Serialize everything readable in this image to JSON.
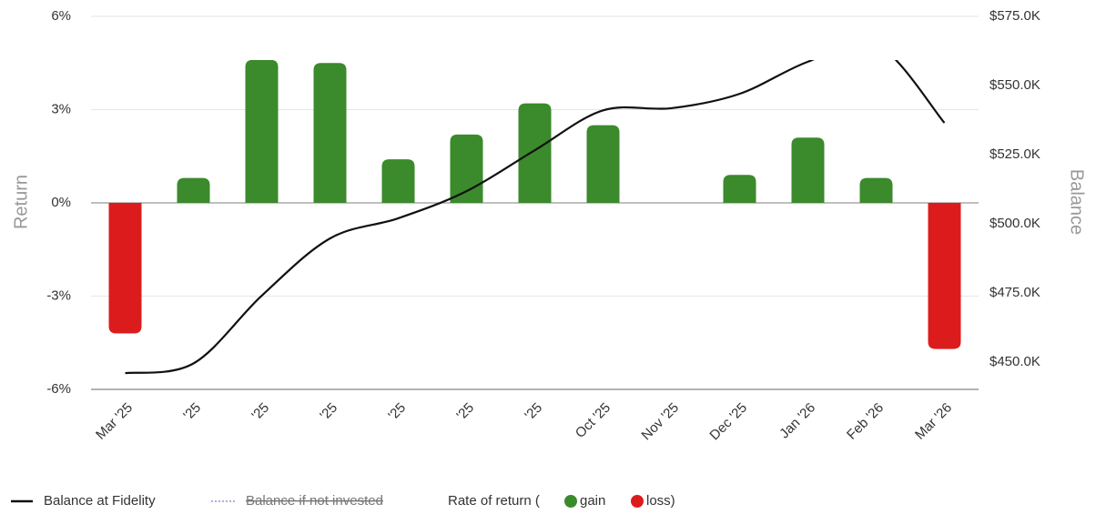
{
  "chart_data": {
    "type": "bar",
    "categories": [
      "Mar '25",
      "'25",
      "'25",
      "'25",
      "'25",
      "'25",
      "'25",
      "Oct '25",
      "Nov '25",
      "Dec '25",
      "Jan '26",
      "Feb '26",
      "Mar '26"
    ],
    "series": [
      {
        "name": "Rate of return",
        "type": "bar",
        "values": [
          -4.2,
          0.8,
          4.6,
          4.5,
          1.4,
          2.2,
          3.2,
          2.5,
          null,
          0.9,
          2.1,
          0.8,
          -4.7
        ],
        "gain_color": "#3b8a2c",
        "loss_color": "#dc1c1c"
      },
      {
        "name": "Balance at Fidelity",
        "type": "line",
        "axis": "y2",
        "color": "#111111",
        "values": [
          446000,
          449500,
          474000,
          494700,
          502000,
          511800,
          526600,
          541000,
          541800,
          547000,
          558600,
          565000,
          536500
        ]
      }
    ],
    "ylabel": "Return",
    "y2label": "Balance",
    "ylim": [
      -6,
      6
    ],
    "yticks": [
      {
        "value": 6,
        "label": "6%"
      },
      {
        "value": 3,
        "label": "3%"
      },
      {
        "value": 0,
        "label": "0%"
      },
      {
        "value": -3,
        "label": "-3%"
      },
      {
        "value": -6,
        "label": "-6%"
      }
    ],
    "y2lim": [
      440130,
      575000
    ],
    "y2ticks": [
      {
        "value": 575000,
        "label": "$575.0K"
      },
      {
        "value": 550000,
        "label": "$550.0K"
      },
      {
        "value": 525000,
        "label": "$525.0K"
      },
      {
        "value": 500000,
        "label": "$500.0K"
      },
      {
        "value": 475000,
        "label": "$475.0K"
      },
      {
        "value": 450000,
        "label": "$450.0K"
      }
    ],
    "grid": true,
    "legend": {
      "position": "bottom-left",
      "items": [
        "Balance at Fidelity",
        "Balance if not invested",
        "Rate of return (",
        "gain",
        "loss)"
      ],
      "hidden_color": "#9b8fd6"
    }
  }
}
